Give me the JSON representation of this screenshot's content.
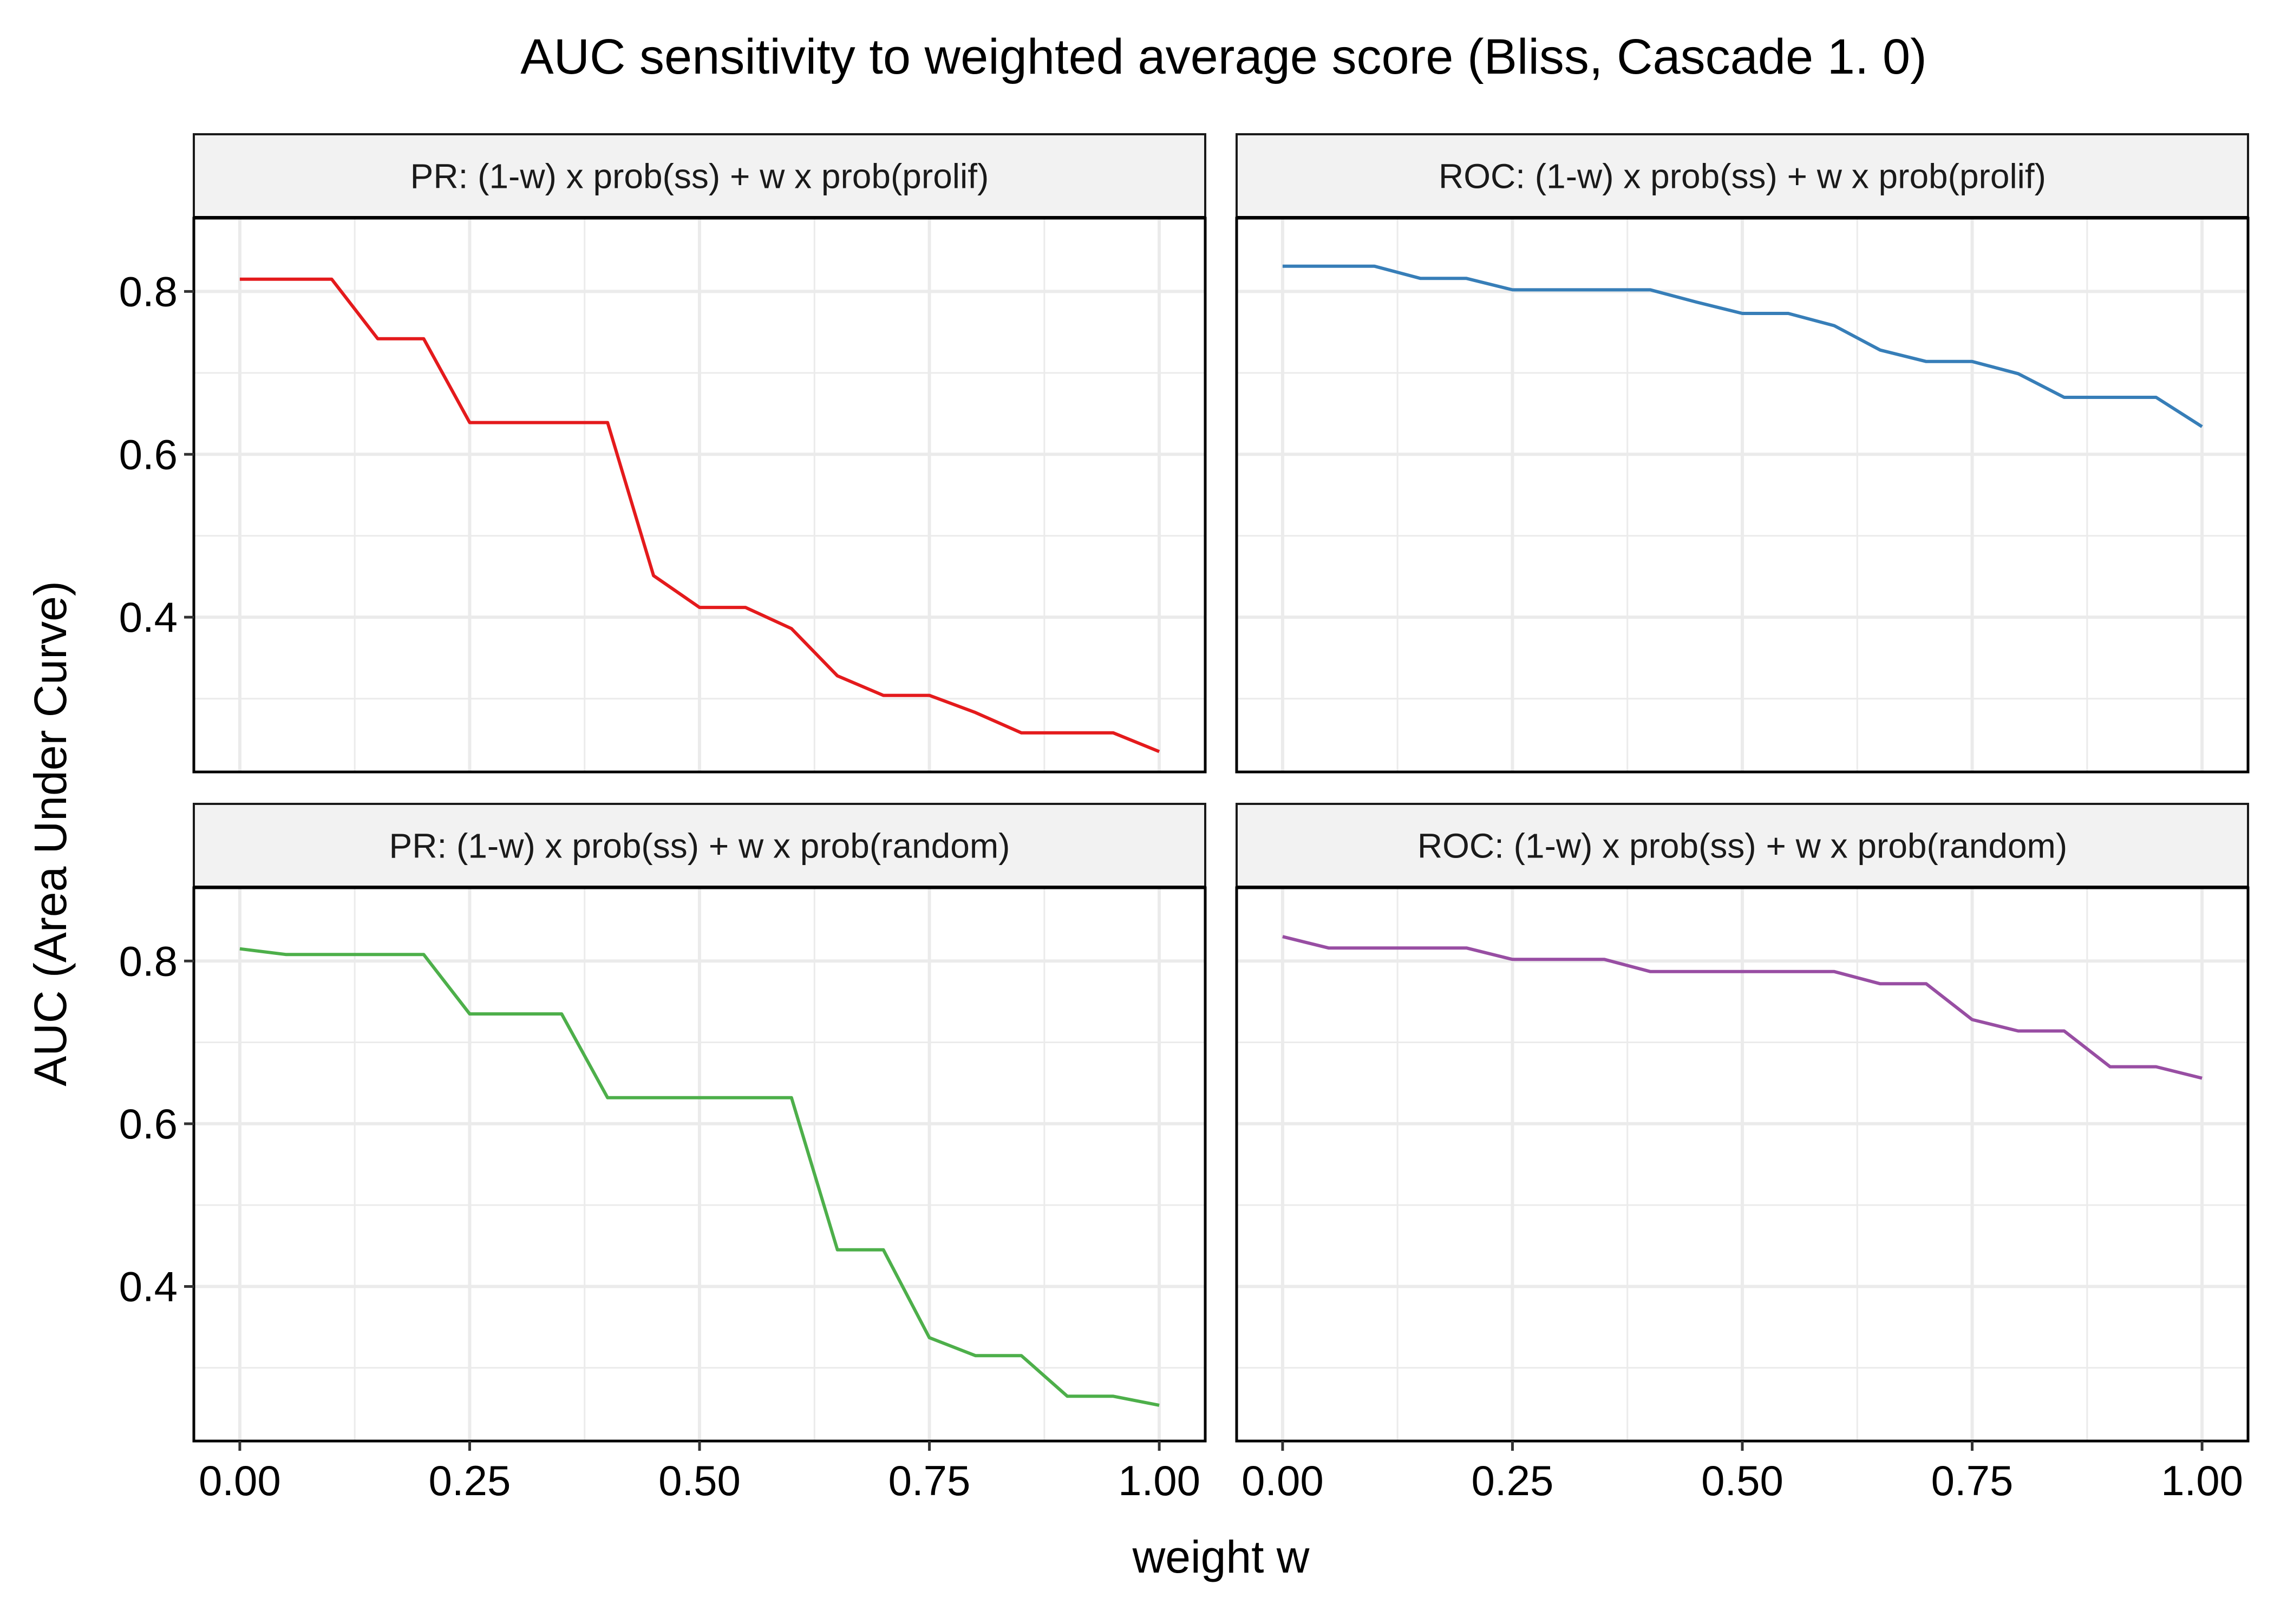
{
  "chart_data": {
    "type": "line",
    "title": "AUC sensitivity to weighted average score (Bliss, Cascade 1. 0)",
    "xlabel": "weight w",
    "ylabel": "AUC (Area Under Curve)",
    "xlim": [
      -0.05,
      1.05
    ],
    "ylim": [
      0.21,
      0.89
    ],
    "x_major_ticks": [
      0,
      0.25,
      0.5,
      0.75,
      1
    ],
    "x_tick_labels": [
      "0.00",
      "0.25",
      "0.50",
      "0.75",
      "1.00"
    ],
    "y_major_ticks": [
      0.4,
      0.6,
      0.8
    ],
    "y_tick_labels": [
      "0.4",
      "0.6",
      "0.8"
    ],
    "x_minor_ticks": [
      0.125,
      0.375,
      0.625,
      0.875
    ],
    "y_minor_ticks": [
      0.3,
      0.5,
      0.7
    ],
    "grid": true,
    "x": [
      0,
      0.05,
      0.1,
      0.15,
      0.2,
      0.25,
      0.3,
      0.35,
      0.4,
      0.45,
      0.5,
      0.55,
      0.6,
      0.65,
      0.7,
      0.75,
      0.8,
      0.85,
      0.9,
      0.95,
      1
    ],
    "panels": [
      {
        "strip": "PR: (1-w) x prob(ss) + w x prob(prolif)",
        "color": "#e41a1c",
        "values": [
          0.815,
          0.815,
          0.815,
          0.742,
          0.742,
          0.639,
          0.639,
          0.639,
          0.639,
          0.451,
          0.412,
          0.412,
          0.386,
          0.328,
          0.304,
          0.304,
          0.283,
          0.258,
          0.258,
          0.258,
          0.235
        ]
      },
      {
        "strip": "ROC: (1-w) x prob(ss) + w x prob(prolif)",
        "color": "#377eb8",
        "values": [
          0.831,
          0.831,
          0.831,
          0.816,
          0.816,
          0.802,
          0.802,
          0.802,
          0.802,
          0.787,
          0.773,
          0.773,
          0.758,
          0.728,
          0.714,
          0.714,
          0.699,
          0.67,
          0.67,
          0.67,
          0.634
        ]
      },
      {
        "strip": "PR: (1-w) x prob(ss) + w x prob(random)",
        "color": "#4daf4a",
        "values": [
          0.815,
          0.808,
          0.808,
          0.808,
          0.808,
          0.735,
          0.735,
          0.735,
          0.632,
          0.632,
          0.632,
          0.632,
          0.632,
          0.445,
          0.445,
          0.337,
          0.315,
          0.315,
          0.265,
          0.265,
          0.254
        ]
      },
      {
        "strip": "ROC: (1-w) x prob(ss) + w x prob(random)",
        "color": "#984ea3",
        "values": [
          0.83,
          0.816,
          0.816,
          0.816,
          0.816,
          0.802,
          0.802,
          0.802,
          0.787,
          0.787,
          0.787,
          0.787,
          0.787,
          0.772,
          0.772,
          0.728,
          0.714,
          0.714,
          0.67,
          0.67,
          0.656
        ]
      }
    ]
  }
}
